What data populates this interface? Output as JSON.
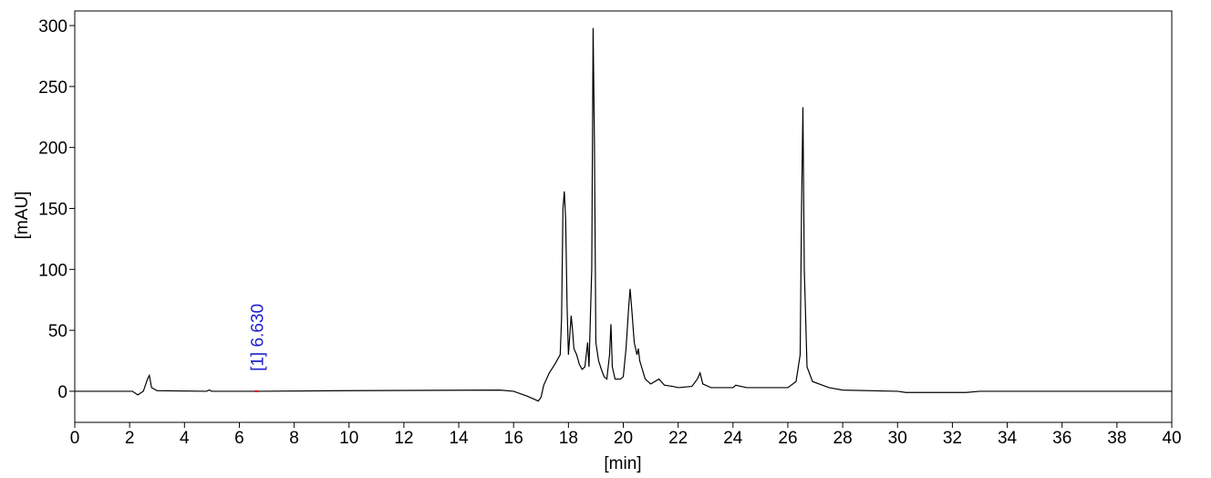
{
  "chart_data": {
    "type": "line",
    "x_label": "[min]",
    "y_label": "[mAU]",
    "xlim": [
      0,
      40
    ],
    "xticks": [
      0,
      2,
      4,
      6,
      8,
      10,
      12,
      14,
      16,
      18,
      20,
      22,
      24,
      26,
      28,
      30,
      32,
      34,
      36,
      38,
      40
    ],
    "ylim": [
      -25.5,
      312
    ],
    "yticks": [
      0,
      50,
      100,
      150,
      200,
      250,
      300
    ],
    "grid": false,
    "series": [
      {
        "color": "#000000",
        "x": [
          0,
          2.1,
          2.3,
          2.5,
          2.65,
          2.72,
          2.8,
          3.0,
          4.8,
          4.9,
          5.0,
          6.63,
          10.0,
          15.5,
          16.0,
          16.5,
          16.9,
          17.0,
          17.1,
          17.3,
          17.5,
          17.7,
          17.75,
          17.8,
          17.85,
          17.9,
          17.95,
          18.0,
          18.1,
          18.15,
          18.2,
          18.3,
          18.4,
          18.5,
          18.6,
          18.7,
          18.75,
          18.85,
          18.9,
          18.95,
          19.0,
          19.1,
          19.2,
          19.3,
          19.4,
          19.5,
          19.55,
          19.6,
          19.7,
          19.9,
          20.0,
          20.1,
          20.2,
          20.25,
          20.3,
          20.4,
          20.5,
          20.55,
          20.6,
          20.8,
          21.0,
          21.3,
          21.5,
          21.8,
          22.0,
          22.5,
          22.7,
          22.8,
          22.9,
          23.2,
          24.0,
          24.1,
          24.5,
          26.0,
          26.3,
          26.45,
          26.5,
          26.55,
          26.6,
          26.7,
          26.9,
          27.5,
          28.0,
          30.0,
          30.3,
          32.5,
          33.0,
          40
        ],
        "values": [
          0,
          0,
          -3,
          0,
          10,
          13,
          3,
          0.5,
          0,
          1,
          0,
          0,
          0.5,
          1,
          0,
          -4,
          -8,
          -5,
          5,
          15,
          22,
          30,
          60,
          150,
          164,
          140,
          70,
          30,
          62,
          50,
          35,
          30,
          22,
          18,
          20,
          40,
          20,
          100,
          298,
          200,
          40,
          25,
          18,
          12,
          10,
          30,
          55,
          20,
          10,
          10,
          12,
          35,
          70,
          84,
          70,
          40,
          30,
          35,
          25,
          10,
          6,
          10,
          5,
          4,
          3,
          4,
          10,
          15,
          6,
          3,
          3,
          5,
          3,
          3,
          8,
          30,
          150,
          233,
          100,
          20,
          8,
          3,
          1,
          0,
          -1,
          -1,
          0,
          0
        ]
      }
    ],
    "annotations": [
      {
        "x": 6.63,
        "text": "[1]  6.630",
        "color": "#1f1fd0"
      }
    ]
  }
}
